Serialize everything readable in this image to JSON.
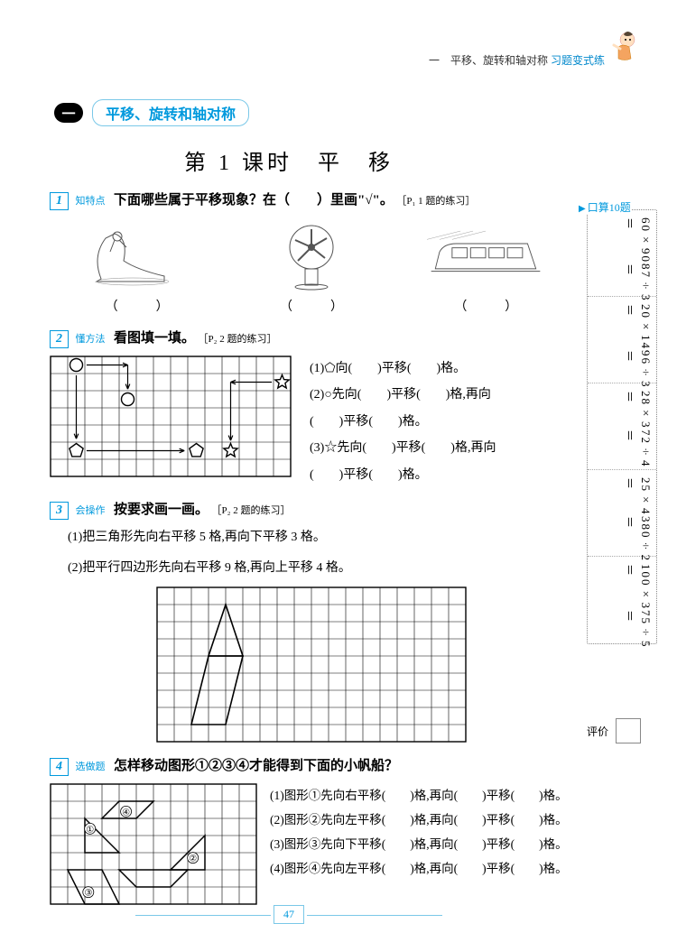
{
  "header": {
    "breadcrumb_black": "一　平移、旋转和轴对称",
    "breadcrumb_blue": "习题变式练"
  },
  "chapter": {
    "num": "一",
    "title": "平移、旋转和轴对称"
  },
  "lesson": "第 1 课时　平　移",
  "q1": {
    "num": "1",
    "tag": "知特点",
    "text": "下面哪些属于平移现象？在（　　）里画\"√\"。",
    "note": "［P₁ 1 题的练习］",
    "paren": "（　　　）"
  },
  "q2": {
    "num": "2",
    "tag": "懂方法",
    "text": "看图填一填。",
    "note": "［P₂ 2 题的练习］",
    "grid": {
      "cols": 14,
      "rows": 7,
      "cell": 19,
      "stroke": "#000"
    },
    "lines": [
      "(1)⬠向(　　)平移(　　)格。",
      "(2)○先向(　　)平移(　　)格,再向",
      "(　　)平移(　　)格。",
      "(3)☆先向(　　)平移(　　)格,再向",
      "(　　)平移(　　)格。"
    ]
  },
  "q3": {
    "num": "3",
    "tag": "会操作",
    "text": "按要求画一画。",
    "note": "［P₂ 2 题的练习］",
    "items": [
      "(1)把三角形先向右平移 5 格,再向下平移 3 格。",
      "(2)把平行四边形先向右平移 9 格,再向上平移 4 格。"
    ],
    "grid": {
      "cols": 18,
      "rows": 9,
      "cell": 19,
      "stroke": "#000"
    }
  },
  "q4": {
    "num": "4",
    "tag": "选做题",
    "text": "怎样移动图形①②③④才能得到下面的小帆船？",
    "grid": {
      "cols": 12,
      "rows": 7,
      "cell": 19,
      "stroke": "#000"
    },
    "lines": [
      "(1)图形①先向右平移(　　)格,再向(　　)平移(　　)格。",
      "(2)图形②先向左平移(　　)格,再向(　　)平移(　　)格。",
      "(3)图形③先向下平移(　　)格,再向(　　)平移(　　)格。",
      "(4)图形④先向左平移(　　)格,再向(　　)平移(　　)格。"
    ]
  },
  "sidebar": {
    "title": "口算10题",
    "problems": [
      [
        "60×90＝",
        "87÷3＝"
      ],
      [
        "20×14＝",
        "96÷3＝"
      ],
      [
        "28×3＝",
        "72÷4＝"
      ],
      [
        "25×4＝",
        "380÷2＝"
      ],
      [
        "100×3＝",
        "75÷5＝"
      ]
    ],
    "rating_label": "评价"
  },
  "pagenum": "47"
}
